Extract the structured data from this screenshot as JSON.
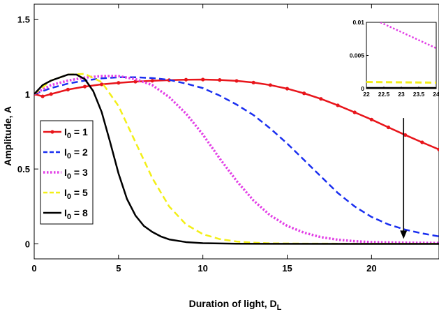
{
  "chart_data": {
    "type": "line",
    "xlabel": "Duration of light, D",
    "xlabel_sub": "L",
    "ylabel": "Amplitude, A",
    "xlim": [
      0,
      24
    ],
    "ylim": [
      -0.1,
      1.6
    ],
    "xticks": [
      0,
      5,
      10,
      15,
      20
    ],
    "yticks": [
      0,
      0.5,
      1,
      1.5
    ],
    "grid": false,
    "legend_position": "left",
    "series": [
      {
        "name_prefix": "I",
        "name_sub": "0",
        "name_suffix": " = 1",
        "color": "#e8151b",
        "dash": "solid",
        "marker": "dot",
        "points": [
          [
            0,
            1.0
          ],
          [
            0.5,
            0.985
          ],
          [
            1,
            1.0
          ],
          [
            2,
            1.03
          ],
          [
            3,
            1.05
          ],
          [
            4,
            1.065
          ],
          [
            5,
            1.075
          ],
          [
            6,
            1.083
          ],
          [
            7,
            1.089
          ],
          [
            8,
            1.093
          ],
          [
            9,
            1.096
          ],
          [
            10,
            1.097
          ],
          [
            11,
            1.094
          ],
          [
            12,
            1.088
          ],
          [
            13,
            1.077
          ],
          [
            14,
            1.06
          ],
          [
            15,
            1.036
          ],
          [
            16,
            1.005
          ],
          [
            17,
            0.968
          ],
          [
            18,
            0.925
          ],
          [
            19,
            0.878
          ],
          [
            20,
            0.83
          ],
          [
            21,
            0.778
          ],
          [
            22,
            0.727
          ],
          [
            23,
            0.678
          ],
          [
            24,
            0.63
          ]
        ]
      },
      {
        "name_prefix": "I",
        "name_sub": "0",
        "name_suffix": " = 2",
        "color": "#1a2ff0",
        "dash": "dashed",
        "marker": "none",
        "points": [
          [
            0,
            1.0
          ],
          [
            1,
            1.04
          ],
          [
            2,
            1.07
          ],
          [
            3,
            1.09
          ],
          [
            4,
            1.105
          ],
          [
            5,
            1.112
          ],
          [
            6,
            1.112
          ],
          [
            7,
            1.107
          ],
          [
            8,
            1.095
          ],
          [
            9,
            1.07
          ],
          [
            10,
            1.04
          ],
          [
            11,
            0.99
          ],
          [
            12,
            0.93
          ],
          [
            13,
            0.86
          ],
          [
            14,
            0.77
          ],
          [
            15,
            0.67
          ],
          [
            16,
            0.56
          ],
          [
            17,
            0.45
          ],
          [
            18,
            0.34
          ],
          [
            19,
            0.25
          ],
          [
            20,
            0.18
          ],
          [
            21,
            0.13
          ],
          [
            22,
            0.095
          ],
          [
            23,
            0.07
          ],
          [
            24,
            0.05
          ]
        ]
      },
      {
        "name_prefix": "I",
        "name_sub": "0",
        "name_suffix": " = 3",
        "color": "#e23ee6",
        "dash": "dotted",
        "marker": "none",
        "points": [
          [
            0,
            1.0
          ],
          [
            1,
            1.06
          ],
          [
            2,
            1.09
          ],
          [
            3,
            1.11
          ],
          [
            4,
            1.12
          ],
          [
            5,
            1.12
          ],
          [
            6,
            1.1
          ],
          [
            7,
            1.06
          ],
          [
            8,
            0.98
          ],
          [
            9,
            0.87
          ],
          [
            10,
            0.73
          ],
          [
            11,
            0.57
          ],
          [
            12,
            0.42
          ],
          [
            13,
            0.29
          ],
          [
            14,
            0.19
          ],
          [
            15,
            0.12
          ],
          [
            16,
            0.075
          ],
          [
            17,
            0.045
          ],
          [
            18,
            0.028
          ],
          [
            19,
            0.018
          ],
          [
            20,
            0.012
          ],
          [
            22,
            0.008
          ],
          [
            24,
            0.006
          ]
        ]
      },
      {
        "name_prefix": "I",
        "name_sub": "0",
        "name_suffix": " = 5",
        "color": "#f3ef17",
        "dash": "dashed",
        "marker": "none",
        "points": [
          [
            0,
            1.0
          ],
          [
            1,
            1.09
          ],
          [
            2,
            1.13
          ],
          [
            3,
            1.135
          ],
          [
            4,
            1.08
          ],
          [
            5,
            0.92
          ],
          [
            6,
            0.68
          ],
          [
            7,
            0.44
          ],
          [
            8,
            0.25
          ],
          [
            9,
            0.13
          ],
          [
            10,
            0.065
          ],
          [
            11,
            0.032
          ],
          [
            12,
            0.016
          ],
          [
            13,
            0.008
          ],
          [
            14,
            0.004
          ],
          [
            16,
            0.002
          ],
          [
            20,
            0.001
          ],
          [
            24,
            0.001
          ]
        ]
      },
      {
        "name_prefix": "I",
        "name_sub": "0",
        "name_suffix": " = 8",
        "color": "#000000",
        "dash": "solid",
        "marker": "none",
        "points": [
          [
            0,
            1.0
          ],
          [
            0.5,
            1.06
          ],
          [
            1,
            1.09
          ],
          [
            1.5,
            1.11
          ],
          [
            2,
            1.13
          ],
          [
            2.5,
            1.13
          ],
          [
            3,
            1.1
          ],
          [
            3.5,
            1.02
          ],
          [
            4,
            0.88
          ],
          [
            4.5,
            0.68
          ],
          [
            5,
            0.47
          ],
          [
            5.5,
            0.3
          ],
          [
            6,
            0.19
          ],
          [
            6.5,
            0.12
          ],
          [
            7,
            0.08
          ],
          [
            7.5,
            0.05
          ],
          [
            8,
            0.03
          ],
          [
            9,
            0.012
          ],
          [
            10,
            0.005
          ],
          [
            12,
            0.001
          ],
          [
            24,
            0
          ]
        ]
      }
    ],
    "inset": {
      "xlim": [
        22,
        24
      ],
      "ylim": [
        0,
        0.01
      ],
      "xticks": [
        22,
        22.5,
        23,
        23.5,
        24
      ],
      "ytick_labels": [
        "0",
        "0.005",
        "0.01"
      ],
      "ytick_values": [
        0,
        0.005,
        0.01
      ],
      "series": [
        {
          "color": "#e23ee6",
          "dash": "dotted",
          "width": 2.5,
          "points": [
            [
              22.4,
              0.01
            ],
            [
              24,
              0.0061
            ]
          ]
        },
        {
          "color": "#f3ef17",
          "dash": "dashed",
          "width": 3,
          "points": [
            [
              22,
              0.001
            ],
            [
              24,
              0.0009
            ]
          ]
        },
        {
          "color": "#000000",
          "dash": "solid",
          "width": 2.5,
          "points": [
            [
              22,
              0.0001
            ],
            [
              24,
              0.0001
            ]
          ]
        }
      ]
    },
    "arrow": {
      "from_data": [
        21.9,
        0.84
      ],
      "to_data": [
        21.9,
        0.08
      ]
    }
  }
}
